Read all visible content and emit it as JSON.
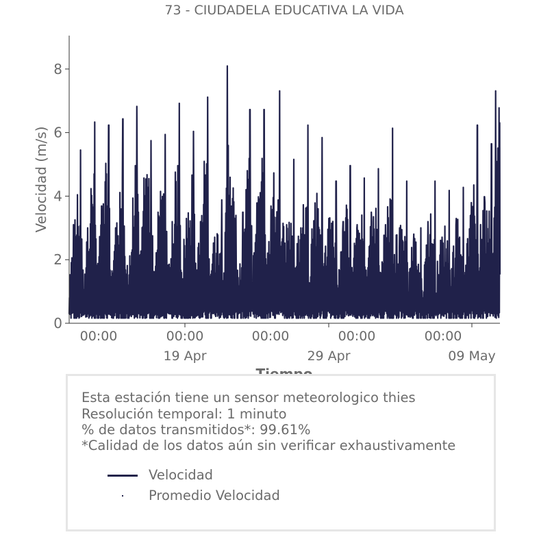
{
  "chart_data": {
    "type": "line",
    "title": "73 - CIUDADELA EDUCATIVA LA VIDA",
    "xlabel": "Tiempo",
    "ylabel": "Velocidad (m/s)",
    "ylim": [
      0,
      9
    ],
    "yticks": [
      0,
      2,
      4,
      6,
      8
    ],
    "x_range": [
      "2023-04-13T00:00",
      "2023-05-13T12:00"
    ],
    "x_minor_ticks": [
      "00:00",
      "00:00",
      "00:00",
      "00:00",
      "00:00"
    ],
    "x_major_ticks": [
      "19 Apr",
      "29 Apr",
      "09 May"
    ],
    "grid": false,
    "line_color": "#20214a",
    "series": [
      {
        "name": "Velocidad",
        "x_unit": "day",
        "x_start": "2023-04-13",
        "peaks": [
          {
            "x": 0.3,
            "y": 3.1
          },
          {
            "x": 0.8,
            "y": 5.5
          },
          {
            "x": 1.3,
            "y": 3.0
          },
          {
            "x": 1.8,
            "y": 6.4
          },
          {
            "x": 2.3,
            "y": 3.7
          },
          {
            "x": 2.8,
            "y": 6.3
          },
          {
            "x": 3.3,
            "y": 3.0
          },
          {
            "x": 3.8,
            "y": 6.5
          },
          {
            "x": 4.3,
            "y": 2.1
          },
          {
            "x": 4.8,
            "y": 6.9
          },
          {
            "x": 5.3,
            "y": 4.6
          },
          {
            "x": 5.8,
            "y": 5.8
          },
          {
            "x": 6.3,
            "y": 3.5
          },
          {
            "x": 6.8,
            "y": 6.0
          },
          {
            "x": 7.3,
            "y": 3.2
          },
          {
            "x": 7.8,
            "y": 7.0
          },
          {
            "x": 8.3,
            "y": 3.3
          },
          {
            "x": 8.8,
            "y": 6.1
          },
          {
            "x": 9.3,
            "y": 3.2
          },
          {
            "x": 9.8,
            "y": 7.2
          },
          {
            "x": 10.3,
            "y": 2.7
          },
          {
            "x": 10.8,
            "y": 3.9
          },
          {
            "x": 11.2,
            "y": 8.2
          },
          {
            "x": 11.8,
            "y": 3.4
          },
          {
            "x": 12.3,
            "y": 3.5
          },
          {
            "x": 12.8,
            "y": 6.8
          },
          {
            "x": 13.3,
            "y": 3.8
          },
          {
            "x": 13.8,
            "y": 6.8
          },
          {
            "x": 14.3,
            "y": 3.7
          },
          {
            "x": 14.9,
            "y": 7.4
          },
          {
            "x": 15.4,
            "y": 3.1
          },
          {
            "x": 15.9,
            "y": 5.2
          },
          {
            "x": 16.4,
            "y": 3.0
          },
          {
            "x": 16.9,
            "y": 6.3
          },
          {
            "x": 17.4,
            "y": 3.8
          },
          {
            "x": 17.9,
            "y": 5.9
          },
          {
            "x": 18.4,
            "y": 3.3
          },
          {
            "x": 18.9,
            "y": 4.5
          },
          {
            "x": 19.4,
            "y": 3.2
          },
          {
            "x": 19.9,
            "y": 5.0
          },
          {
            "x": 20.4,
            "y": 3.1
          },
          {
            "x": 20.9,
            "y": 4.6
          },
          {
            "x": 21.4,
            "y": 3.5
          },
          {
            "x": 21.9,
            "y": 4.9
          },
          {
            "x": 22.4,
            "y": 3.1
          },
          {
            "x": 22.9,
            "y": 6.2
          },
          {
            "x": 23.4,
            "y": 3.0
          },
          {
            "x": 23.9,
            "y": 4.5
          },
          {
            "x": 24.4,
            "y": 2.8
          },
          {
            "x": 24.9,
            "y": 3.0
          },
          {
            "x": 25.4,
            "y": 3.2
          },
          {
            "x": 25.9,
            "y": 4.5
          },
          {
            "x": 26.4,
            "y": 2.7
          },
          {
            "x": 26.9,
            "y": 4.2
          },
          {
            "x": 27.4,
            "y": 3.3
          },
          {
            "x": 27.9,
            "y": 4.3
          },
          {
            "x": 28.4,
            "y": 3.4
          },
          {
            "x": 28.9,
            "y": 6.3
          },
          {
            "x": 29.4,
            "y": 4.0
          },
          {
            "x": 29.9,
            "y": 5.7
          },
          {
            "x": 30.2,
            "y": 7.4
          },
          {
            "x": 30.5,
            "y": 7.3
          }
        ],
        "last_value": 1.5
      },
      {
        "name": "Promedio Velocidad",
        "marker": "dot"
      }
    ]
  },
  "info": {
    "line1": "Esta estación tiene un sensor meteorologico thies",
    "line2": "Resolución temporal: 1 minuto",
    "line3": "% de datos transmitidos*: 99.61%",
    "line4": "*Calidad de los datos aún sin verificar exhaustivamente"
  }
}
